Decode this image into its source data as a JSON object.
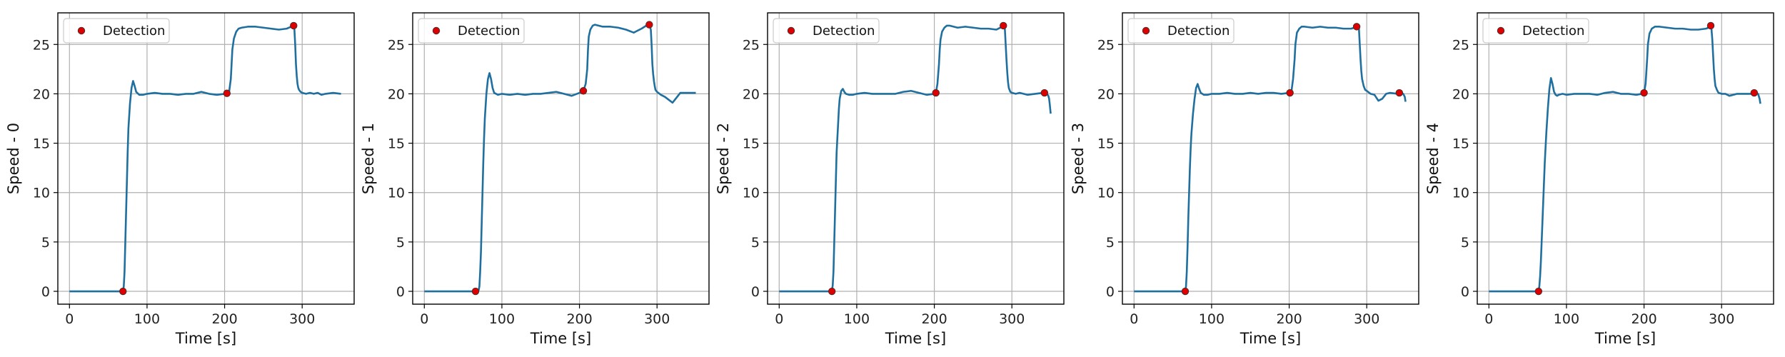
{
  "chart_data": [
    {
      "type": "line",
      "xlabel": "Time [s]",
      "ylabel": "Speed - 0",
      "xlim": [
        -15,
        367
      ],
      "ylim": [
        -1.3,
        28.2
      ],
      "xticks": [
        0,
        100,
        200,
        300
      ],
      "yticks": [
        0,
        5,
        10,
        15,
        20,
        25
      ],
      "grid": true,
      "legend": {
        "position": "top-left",
        "entries": [
          "Detection"
        ]
      },
      "line_color": "#1f6f9f",
      "marker_color": "#dd0000",
      "series": [
        {
          "x": [
            0,
            65,
            69,
            70,
            71,
            72,
            73,
            74,
            75,
            76,
            78,
            80,
            82,
            84,
            86,
            90,
            95,
            100,
            110,
            120,
            130,
            140,
            150,
            160,
            170,
            180,
            190,
            200,
            203,
            206,
            208,
            209,
            210,
            212,
            215,
            218,
            222,
            230,
            240,
            250,
            260,
            270,
            280,
            286,
            289,
            290,
            291,
            292,
            293,
            294,
            295,
            296,
            298,
            300,
            305,
            310,
            315,
            320,
            325,
            330,
            340,
            350
          ],
          "y": [
            0,
            0,
            0.1,
            0.5,
            2,
            5,
            8,
            11,
            14,
            16.5,
            19,
            20.6,
            21.3,
            20.8,
            20.2,
            19.9,
            19.9,
            20,
            20.1,
            20,
            20,
            19.9,
            20,
            20,
            20.2,
            20,
            19.9,
            20,
            20.05,
            20.3,
            21.5,
            23,
            24.5,
            25.6,
            26.3,
            26.6,
            26.7,
            26.8,
            26.8,
            26.7,
            26.6,
            26.5,
            26.6,
            26.8,
            26.9,
            26.5,
            25,
            23,
            21.8,
            21,
            20.6,
            20.4,
            20.2,
            20.1,
            20,
            20.1,
            20,
            20.1,
            19.9,
            20,
            20.1,
            20
          ]
        }
      ],
      "detections": [
        {
          "x": 69,
          "y": 0
        },
        {
          "x": 203,
          "y": 20.05
        },
        {
          "x": 289,
          "y": 26.9
        }
      ]
    },
    {
      "type": "line",
      "xlabel": "Time [s]",
      "ylabel": "Speed - 1",
      "xlim": [
        -15,
        367
      ],
      "ylim": [
        -1.3,
        28.2
      ],
      "xticks": [
        0,
        100,
        200,
        300
      ],
      "yticks": [
        0,
        5,
        10,
        15,
        20,
        25
      ],
      "grid": true,
      "legend": {
        "position": "top-left",
        "entries": [
          "Detection"
        ]
      },
      "line_color": "#1f6f9f",
      "marker_color": "#dd0000",
      "series": [
        {
          "x": [
            0,
            66,
            70,
            71,
            72,
            73,
            74,
            75,
            76,
            77,
            78,
            80,
            82,
            84,
            86,
            88,
            90,
            95,
            100,
            110,
            120,
            130,
            140,
            150,
            160,
            170,
            180,
            190,
            200,
            205,
            208,
            210,
            211,
            212,
            214,
            217,
            220,
            225,
            230,
            240,
            250,
            260,
            270,
            280,
            286,
            290,
            292,
            293,
            294,
            295,
            296,
            297,
            298,
            300,
            305,
            310,
            315,
            320,
            325,
            330,
            340,
            350
          ],
          "y": [
            0,
            0,
            0.1,
            0.5,
            2,
            4,
            7,
            10,
            13,
            15.5,
            17.5,
            20,
            21.5,
            22.1,
            21.5,
            20.6,
            20.1,
            19.9,
            20,
            19.9,
            20,
            19.9,
            20,
            20,
            20.1,
            20.2,
            20,
            19.8,
            20.1,
            20.3,
            21,
            22.5,
            24.5,
            25.8,
            26.5,
            26.9,
            27,
            26.9,
            26.8,
            26.8,
            26.7,
            26.5,
            26.2,
            26.6,
            26.9,
            27,
            26.5,
            25,
            23,
            22,
            21.3,
            20.8,
            20.4,
            20.2,
            19.9,
            19.7,
            19.4,
            19.1,
            19.6,
            20.1,
            20.1,
            20.1
          ]
        }
      ],
      "detections": [
        {
          "x": 66,
          "y": 0
        },
        {
          "x": 205,
          "y": 20.3
        },
        {
          "x": 290,
          "y": 27
        }
      ]
    },
    {
      "type": "line",
      "xlabel": "Time [s]",
      "ylabel": "Speed - 2",
      "xlim": [
        -15,
        367
      ],
      "ylim": [
        -1.3,
        28.2
      ],
      "xticks": [
        0,
        100,
        200,
        300
      ],
      "yticks": [
        0,
        5,
        10,
        15,
        20,
        25
      ],
      "grid": true,
      "legend": {
        "position": "top-left",
        "entries": [
          "Detection"
        ]
      },
      "line_color": "#1f6f9f",
      "marker_color": "#dd0000",
      "series": [
        {
          "x": [
            0,
            65,
            68,
            69,
            70,
            71,
            72,
            73,
            74,
            75,
            76,
            77,
            78,
            80,
            82,
            84,
            86,
            90,
            95,
            100,
            110,
            120,
            130,
            140,
            150,
            160,
            170,
            180,
            190,
            200,
            202,
            204,
            206,
            207,
            208,
            210,
            213,
            216,
            220,
            230,
            240,
            250,
            260,
            270,
            280,
            285,
            288,
            290,
            291,
            292,
            293,
            294,
            295,
            296,
            298,
            300,
            305,
            310,
            315,
            320,
            330,
            340,
            342,
            345,
            347,
            348,
            349,
            350
          ],
          "y": [
            0,
            0,
            0.1,
            0.6,
            2,
            5,
            8,
            11,
            14,
            15.5,
            17,
            18.5,
            19.5,
            20.3,
            20.5,
            20.2,
            20,
            19.9,
            19.9,
            20,
            20.1,
            20,
            20,
            20,
            20,
            20.2,
            20.3,
            20.1,
            19.9,
            20,
            20.1,
            21,
            23,
            24.5,
            25.5,
            26.3,
            26.7,
            26.9,
            26.9,
            26.7,
            26.8,
            26.7,
            26.6,
            26.6,
            26.5,
            26.7,
            26.8,
            26.9,
            26.5,
            25,
            23.5,
            22.2,
            21.2,
            20.6,
            20.2,
            20.1,
            20,
            20.1,
            20,
            19.9,
            20,
            20.1,
            20.1,
            20,
            19.8,
            19.5,
            18.8,
            18
          ]
        }
      ],
      "detections": [
        {
          "x": 68,
          "y": 0
        },
        {
          "x": 202,
          "y": 20.1
        },
        {
          "x": 289,
          "y": 26.9
        },
        {
          "x": 342,
          "y": 20.1
        }
      ]
    },
    {
      "type": "line",
      "xlabel": "Time [s]",
      "ylabel": "Speed - 3",
      "xlim": [
        -15,
        367
      ],
      "ylim": [
        -1.3,
        28.2
      ],
      "xticks": [
        0,
        100,
        200,
        300
      ],
      "yticks": [
        0,
        5,
        10,
        15,
        20,
        25
      ],
      "grid": true,
      "legend": {
        "position": "top-left",
        "entries": [
          "Detection"
        ]
      },
      "line_color": "#1f6f9f",
      "marker_color": "#dd0000",
      "series": [
        {
          "x": [
            0,
            63,
            66,
            67,
            68,
            69,
            70,
            71,
            72,
            73,
            74,
            75,
            76,
            78,
            80,
            82,
            84,
            86,
            90,
            95,
            100,
            110,
            120,
            130,
            140,
            150,
            160,
            170,
            180,
            190,
            200,
            203,
            205,
            207,
            208,
            210,
            213,
            216,
            220,
            230,
            240,
            250,
            260,
            270,
            280,
            284,
            287,
            289,
            290,
            291,
            292,
            293,
            294,
            296,
            298,
            300,
            305,
            310,
            315,
            320,
            325,
            330,
            340,
            342,
            345,
            347,
            349,
            350
          ],
          "y": [
            0,
            0,
            0.1,
            0.5,
            2,
            4.5,
            7.5,
            10,
            12.5,
            14.5,
            16,
            17,
            18,
            19.5,
            20.6,
            21,
            20.5,
            20.1,
            19.9,
            19.9,
            20,
            20,
            20.1,
            20,
            20,
            20.1,
            20,
            20.1,
            20.1,
            20,
            20.1,
            20.3,
            21.5,
            23.5,
            25,
            26.2,
            26.6,
            26.8,
            26.8,
            26.7,
            26.8,
            26.7,
            26.7,
            26.6,
            26.6,
            26.7,
            26.8,
            26.9,
            26.5,
            25,
            23.5,
            22.3,
            21.5,
            20.8,
            20.4,
            20.3,
            20,
            19.9,
            19.3,
            19.5,
            20,
            20.1,
            20,
            20.1,
            20.1,
            20,
            19.7,
            19.2
          ]
        }
      ],
      "detections": [
        {
          "x": 66,
          "y": 0
        },
        {
          "x": 201,
          "y": 20.1
        },
        {
          "x": 287,
          "y": 26.8
        },
        {
          "x": 342,
          "y": 20.1
        }
      ]
    },
    {
      "type": "line",
      "xlabel": "Time [s]",
      "ylabel": "Speed - 4",
      "xlim": [
        -15,
        367
      ],
      "ylim": [
        -1.3,
        28.2
      ],
      "xticks": [
        0,
        100,
        200,
        300
      ],
      "yticks": [
        0,
        5,
        10,
        15,
        20,
        25
      ],
      "grid": true,
      "legend": {
        "position": "top-left",
        "entries": [
          "Detection"
        ]
      },
      "line_color": "#1f6f9f",
      "marker_color": "#dd0000",
      "series": [
        {
          "x": [
            0,
            60,
            64,
            65,
            66,
            67,
            68,
            69,
            70,
            71,
            72,
            74,
            76,
            78,
            80,
            82,
            84,
            86,
            88,
            90,
            95,
            100,
            110,
            120,
            130,
            140,
            150,
            160,
            170,
            180,
            190,
            197,
            200,
            202,
            204,
            205,
            207,
            210,
            214,
            220,
            230,
            240,
            250,
            260,
            270,
            280,
            283,
            286,
            287,
            288,
            289,
            290,
            291,
            292,
            294,
            296,
            300,
            305,
            310,
            320,
            330,
            340,
            342,
            345,
            347,
            349,
            350
          ],
          "y": [
            0,
            0,
            0.1,
            0.5,
            1.5,
            3,
            5,
            7,
            9,
            11,
            13,
            16,
            18.5,
            20.5,
            21.6,
            21,
            20.2,
            19.9,
            19.8,
            19.9,
            20,
            19.9,
            20,
            20,
            20,
            19.9,
            20.1,
            20.2,
            20,
            20,
            19.9,
            20,
            20.1,
            21,
            23.5,
            25,
            26.1,
            26.6,
            26.8,
            26.8,
            26.7,
            26.6,
            26.6,
            26.5,
            26.5,
            26.6,
            26.7,
            26.9,
            26.5,
            25.5,
            24,
            22.5,
            21.5,
            20.8,
            20.4,
            20.1,
            20,
            20,
            19.8,
            20,
            20,
            20,
            20.1,
            20.1,
            20,
            19.5,
            19
          ]
        }
      ],
      "detections": [
        {
          "x": 64,
          "y": 0
        },
        {
          "x": 200,
          "y": 20.1
        },
        {
          "x": 286,
          "y": 26.9
        },
        {
          "x": 342,
          "y": 20.1
        }
      ]
    }
  ]
}
